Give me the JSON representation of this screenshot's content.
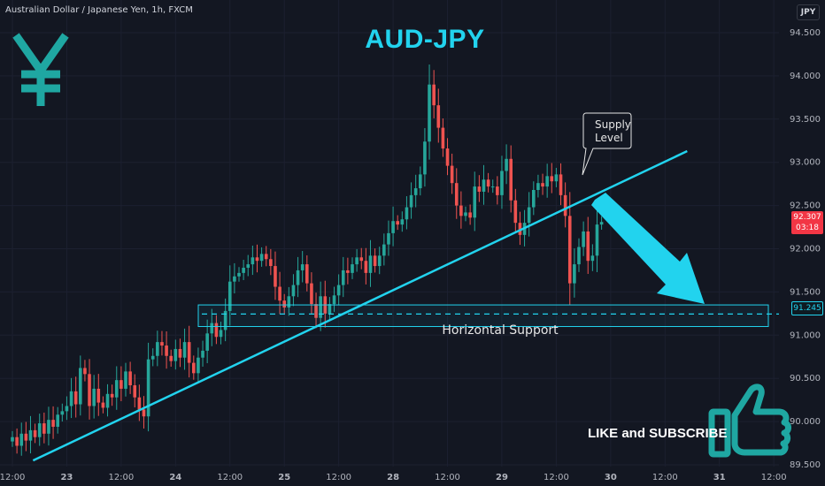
{
  "header": {
    "symbol_title": "Australian Dollar / Japanese Yen, 1h, FXCM",
    "currency": "JPY"
  },
  "overlay": {
    "headline": "AUD-JPY",
    "yen_symbol": "¥",
    "callout": {
      "line1": "Supply",
      "line2": "Level"
    },
    "support_label": "Horizontal Support",
    "cta": "LIKE and SUBSCRIBE",
    "thumb_icon": "thumbs-up-icon",
    "arrow_icon": "down-right-arrow-icon"
  },
  "price_tags": {
    "current": {
      "price": "92.307",
      "countdown": "03:18"
    },
    "support": {
      "price": "91.245"
    }
  },
  "colors": {
    "background": "#131722",
    "up": "#26a69a",
    "down": "#ef5350",
    "accent": "#22d3ee",
    "tag_red": "#f23645"
  },
  "chart_data": {
    "type": "candlestick",
    "title": "Australian Dollar / Japanese Yen, 1h, FXCM",
    "y_axis": {
      "min": 89.5,
      "max": 94.6,
      "ticks": [
        "94.500",
        "94.000",
        "93.500",
        "93.000",
        "92.500",
        "92.000",
        "91.500",
        "91.000",
        "90.500",
        "90.000",
        "89.500"
      ]
    },
    "x_axis": {
      "ticks": [
        {
          "label": "12:00",
          "i": 0
        },
        {
          "label": "23",
          "i": 12
        },
        {
          "label": "12:00",
          "i": 24
        },
        {
          "label": "24",
          "i": 36
        },
        {
          "label": "12:00",
          "i": 48
        },
        {
          "label": "25",
          "i": 60
        },
        {
          "label": "12:00",
          "i": 72
        },
        {
          "label": "28",
          "i": 84
        },
        {
          "label": "12:00",
          "i": 96
        },
        {
          "label": "29",
          "i": 108
        },
        {
          "label": "12:00",
          "i": 120
        },
        {
          "label": "30",
          "i": 132
        },
        {
          "label": "12:00",
          "i": 144
        },
        {
          "label": "31",
          "i": 156
        },
        {
          "label": "12:00",
          "i": 168
        }
      ]
    },
    "closes": [
      89.82,
      89.72,
      89.86,
      89.78,
      89.9,
      89.82,
      89.98,
      89.86,
      90.02,
      89.94,
      90.08,
      90.12,
      90.18,
      90.35,
      90.2,
      90.62,
      90.55,
      90.18,
      90.38,
      90.22,
      90.16,
      90.32,
      90.28,
      90.48,
      90.38,
      90.58,
      90.42,
      90.28,
      90.14,
      90.06,
      90.72,
      90.76,
      90.92,
      90.88,
      90.76,
      90.7,
      90.84,
      90.74,
      90.92,
      90.68,
      90.56,
      90.74,
      90.82,
      91.02,
      91.14,
      90.98,
      91.06,
      91.28,
      91.62,
      91.68,
      91.72,
      91.78,
      91.82,
      91.9,
      91.86,
      91.94,
      91.88,
      91.8,
      91.56,
      91.4,
      91.32,
      91.45,
      91.58,
      91.75,
      91.82,
      91.6,
      91.36,
      91.2,
      91.45,
      91.25,
      91.36,
      91.46,
      91.58,
      91.75,
      91.72,
      91.82,
      91.9,
      91.86,
      91.72,
      91.92,
      91.8,
      91.92,
      92.05,
      92.18,
      92.32,
      92.28,
      92.34,
      92.48,
      92.62,
      92.7,
      92.86,
      93.24,
      93.9,
      93.66,
      93.4,
      93.16,
      92.96,
      92.76,
      92.5,
      92.38,
      92.42,
      92.36,
      92.72,
      92.66,
      92.8,
      92.72,
      92.72,
      92.62,
      92.9,
      93.04,
      92.56,
      92.3,
      92.16,
      92.3,
      92.48,
      92.68,
      92.76,
      92.72,
      92.84,
      92.78,
      92.86,
      92.62,
      92.38,
      91.6,
      91.82,
      92.02,
      92.2,
      91.86,
      91.92,
      92.28,
      92.31
    ],
    "hour_offset": 9,
    "horizontal_support": {
      "price": 91.245,
      "zone_low": 91.1,
      "zone_high": 91.35
    },
    "trendline": [
      {
        "i": 3,
        "price": 89.55
      },
      {
        "i": 136,
        "price": 93.15
      }
    ],
    "last_price": 92.307
  }
}
